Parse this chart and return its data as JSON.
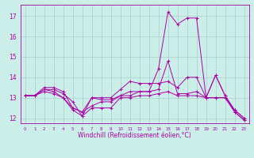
{
  "xlabel": "Windchill (Refroidissement éolien,°C)",
  "background_color": "#cceee8",
  "line_color": "#aa00aa",
  "grid_color": "#aacccc",
  "xlim": [
    -0.5,
    23.5
  ],
  "ylim": [
    11.75,
    17.55
  ],
  "yticks": [
    12,
    13,
    14,
    15,
    16,
    17
  ],
  "xticks": [
    0,
    1,
    2,
    3,
    4,
    5,
    6,
    7,
    8,
    9,
    10,
    11,
    12,
    13,
    14,
    15,
    16,
    17,
    18,
    19,
    20,
    21,
    22,
    23
  ],
  "series": [
    [
      13.1,
      13.1,
      13.4,
      13.4,
      13.2,
      12.8,
      12.1,
      13.0,
      12.9,
      12.9,
      13.1,
      13.3,
      13.3,
      13.3,
      14.4,
      17.2,
      16.6,
      16.9,
      16.9,
      13.0,
      14.1,
      13.1,
      12.4,
      12.0
    ],
    [
      13.1,
      13.1,
      13.4,
      13.3,
      13.0,
      12.5,
      12.3,
      12.6,
      12.8,
      12.8,
      13.1,
      13.1,
      13.3,
      13.3,
      13.4,
      14.8,
      13.2,
      13.2,
      13.3,
      13.0,
      13.0,
      13.0,
      12.4,
      12.0
    ],
    [
      13.1,
      13.1,
      13.5,
      13.5,
      13.3,
      12.5,
      12.3,
      13.0,
      13.0,
      13.0,
      13.4,
      13.8,
      13.7,
      13.7,
      13.7,
      13.8,
      13.5,
      14.0,
      14.0,
      13.0,
      14.1,
      13.1,
      12.3,
      11.9
    ],
    [
      13.1,
      13.1,
      13.3,
      13.2,
      13.0,
      12.4,
      12.1,
      12.5,
      12.5,
      12.5,
      13.0,
      13.0,
      13.1,
      13.1,
      13.2,
      13.3,
      13.1,
      13.1,
      13.1,
      13.0,
      13.0,
      13.0,
      12.3,
      11.9
    ]
  ]
}
